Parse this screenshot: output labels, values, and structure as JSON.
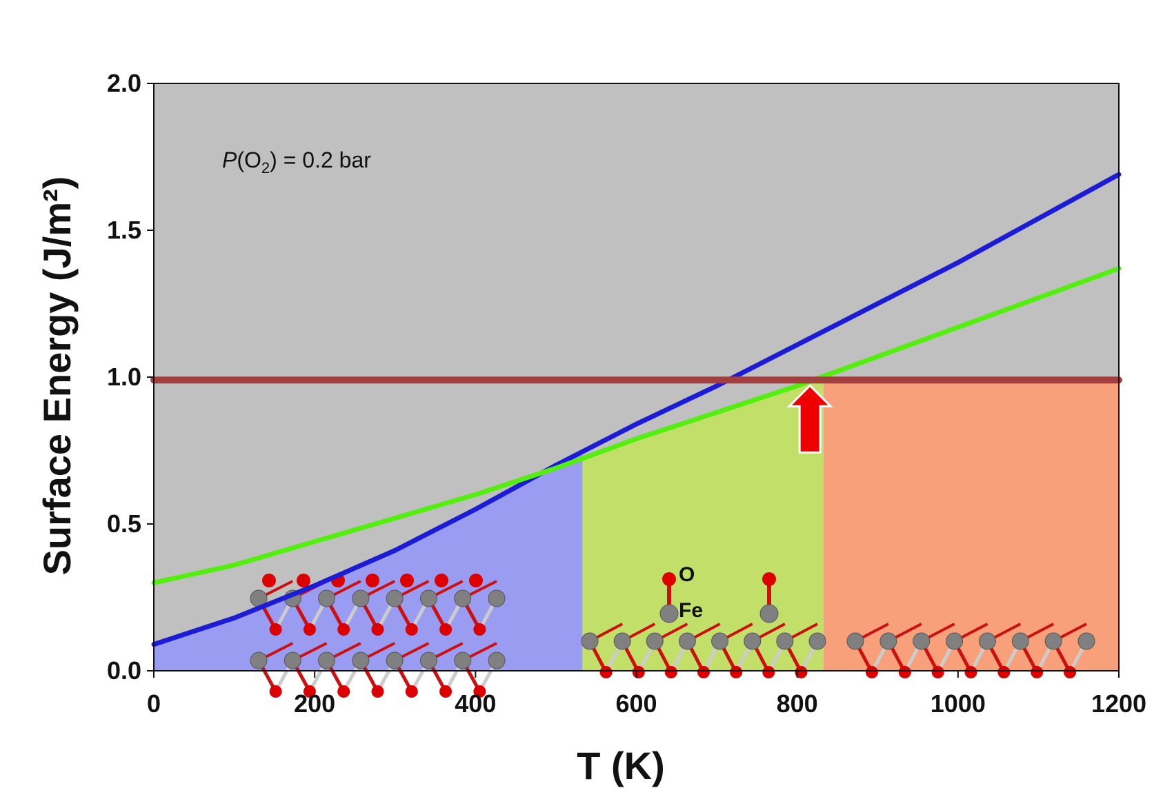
{
  "chart_data": {
    "type": "line",
    "title": "",
    "xlabel": "T (K)",
    "ylabel": "Surface Energy (J/m²)",
    "xlim": [
      0,
      1200
    ],
    "ylim": [
      0,
      2.0
    ],
    "x_ticks": [
      0,
      200,
      400,
      600,
      800,
      1000,
      1200
    ],
    "x_tick_labels": [
      "0",
      "200",
      "400",
      "600",
      "800",
      "1000",
      "1200"
    ],
    "y_ticks": [
      0.0,
      0.5,
      1.0,
      1.5,
      2.0
    ],
    "y_tick_labels": [
      "0.0",
      "0.5",
      "1.0",
      "1.5",
      "2.0"
    ],
    "annotation": {
      "italic": "P",
      "open": "(O",
      "sub": "2",
      "rest": ") = 0.2 bar"
    },
    "atom_labels": {
      "oxygen": "O",
      "iron": "Fe"
    },
    "series": [
      {
        "name": "blue surface",
        "color": "#1c1cd6",
        "x": [
          0,
          100,
          200,
          300,
          400,
          500,
          600,
          700,
          800,
          900,
          1000,
          1100,
          1200
        ],
        "y": [
          0.09,
          0.18,
          0.29,
          0.41,
          0.55,
          0.7,
          0.84,
          0.97,
          1.11,
          1.25,
          1.39,
          1.54,
          1.69
        ]
      },
      {
        "name": "green surface",
        "color": "#55ee11",
        "x": [
          0,
          100,
          200,
          300,
          400,
          500,
          600,
          700,
          800,
          900,
          1000,
          1100,
          1200
        ],
        "y": [
          0.3,
          0.36,
          0.44,
          0.52,
          0.6,
          0.69,
          0.79,
          0.88,
          0.97,
          1.07,
          1.17,
          1.27,
          1.37
        ]
      },
      {
        "name": "reference line",
        "color": "#a33f3f",
        "x": [
          0,
          1200
        ],
        "y": [
          0.99,
          0.99
        ]
      }
    ],
    "regions": [
      {
        "name": "blue-phase",
        "x_start": 0,
        "x_end": 533,
        "color": "#9a9cf2",
        "upper": "blue"
      },
      {
        "name": "green-phase",
        "x_start": 533,
        "x_end": 833,
        "color": "#c2df6a",
        "upper": "green"
      },
      {
        "name": "orange-phase",
        "x_start": 833,
        "x_end": 1200,
        "color": "#f8a07a",
        "upper": 0.99
      }
    ],
    "arrow": {
      "x": 833,
      "y_from": 0.72,
      "y_to": 0.99,
      "color": "#ee0000"
    },
    "colors": {
      "background": "#c0c0c0",
      "atom_oxygen": "#dd0000",
      "atom_iron": "#808080",
      "bond": "#cc1010"
    }
  }
}
